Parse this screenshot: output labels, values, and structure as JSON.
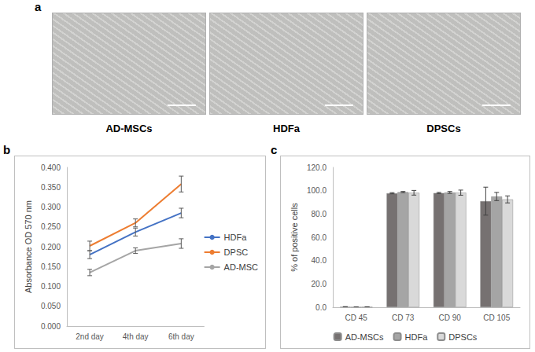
{
  "panel_a": {
    "label": "a",
    "captions": [
      "AD-MSCs",
      "HDFa",
      "DPSCs"
    ]
  },
  "chart_data": [
    {
      "panel_label": "b",
      "type": "line",
      "categories": [
        "2nd day",
        "4th day",
        "6th day"
      ],
      "y_label": "Absorbance OD 570 nm",
      "ylim": [
        0,
        0.4
      ],
      "yticks": [
        {
          "value": 0,
          "label": "0.000"
        },
        {
          "value": 0.05,
          "label": "0.050"
        },
        {
          "value": 0.1,
          "label": "0.100"
        },
        {
          "value": 0.15,
          "label": "0.150"
        },
        {
          "value": 0.2,
          "label": "0.200"
        },
        {
          "value": 0.25,
          "label": "0.250"
        },
        {
          "value": 0.3,
          "label": "0.300"
        },
        {
          "value": 0.35,
          "label": "0.350"
        },
        {
          "value": 0.4,
          "label": "0.400"
        }
      ],
      "grid": false,
      "legend": "right",
      "series": [
        {
          "name": "HDFa",
          "color": "#4472c4",
          "values": [
            0.18,
            0.237,
            0.285
          ],
          "errors": [
            0.01,
            0.01,
            0.012
          ]
        },
        {
          "name": "DPSC",
          "color": "#ed7d31",
          "values": [
            0.202,
            0.26,
            0.358
          ],
          "errors": [
            0.012,
            0.01,
            0.02
          ]
        },
        {
          "name": "AD-MSC",
          "color": "#a5a5a5",
          "values": [
            0.135,
            0.19,
            0.208
          ],
          "errors": [
            0.008,
            0.007,
            0.012
          ]
        }
      ]
    },
    {
      "panel_label": "c",
      "type": "bar",
      "categories": [
        "CD 45",
        "CD 73",
        "CD 90",
        "CD 105"
      ],
      "y_label": "% of positive cells",
      "ylim": [
        0,
        120
      ],
      "yticks": [
        {
          "value": 0,
          "label": "0.0"
        },
        {
          "value": 20,
          "label": "20.0"
        },
        {
          "value": 40,
          "label": "40.0"
        },
        {
          "value": 60,
          "label": "60.0"
        },
        {
          "value": 80,
          "label": "80.0"
        },
        {
          "value": 100,
          "label": "100.0"
        },
        {
          "value": 120,
          "label": "120.0"
        }
      ],
      "grid": false,
      "legend": "bottom",
      "series": [
        {
          "name": "AD-MSCs",
          "color": "#767171",
          "values": [
            0.3,
            97.8,
            98.0,
            91.0
          ],
          "errors": [
            0.2,
            0.5,
            0.5,
            12.0
          ]
        },
        {
          "name": "HDFa",
          "color": "#a5a5a5",
          "values": [
            0.1,
            98.8,
            98.5,
            95.0
          ],
          "errors": [
            0.1,
            0.5,
            0.8,
            3.5
          ]
        },
        {
          "name": "DPSCs",
          "color": "#d9d9d9",
          "values": [
            0.2,
            98.2,
            98.3,
            92.5
          ],
          "errors": [
            0.2,
            2.0,
            2.2,
            3.0
          ]
        }
      ]
    }
  ]
}
